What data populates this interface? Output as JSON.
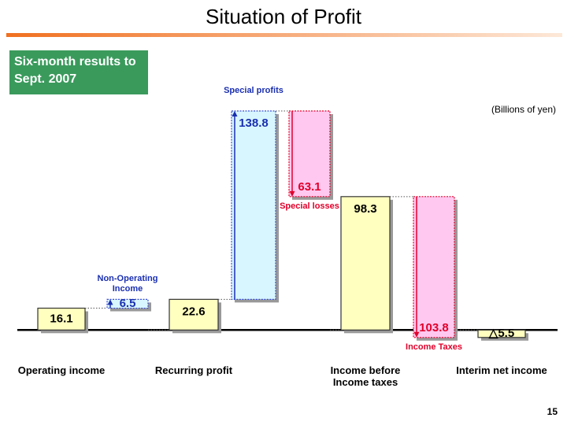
{
  "title": "Situation of Profit",
  "period": "Six-month results to Sept. 2007",
  "page_number": "15",
  "chart_data": {
    "type": "waterfall",
    "unit_label": "(Billions of yen)",
    "categories": [
      "Operating income",
      null,
      "Recurring profit",
      null,
      null,
      "Income before Income taxes",
      null,
      "Interim net income"
    ],
    "bar_notes": [
      null,
      "Non-Operating Income",
      null,
      "Special profits",
      "Special losses",
      null,
      "Income Taxes",
      null
    ],
    "kinds": [
      "total",
      "increase",
      "total",
      "increase",
      "decrease",
      "total",
      "decrease",
      "total"
    ],
    "values": [
      16.1,
      6.5,
      22.6,
      138.8,
      63.1,
      98.3,
      103.8,
      -5.5
    ],
    "value_labels": [
      null,
      null,
      null,
      null,
      null,
      null,
      null,
      "△5.5"
    ],
    "colors": {
      "total": "#ffffc0",
      "increase": "#d8f6ff",
      "decrease": "#ffc8f0",
      "increase_text": "#1a2fb0",
      "decrease_text": "#e0002a"
    },
    "ylim": [
      -12,
      162
    ]
  }
}
